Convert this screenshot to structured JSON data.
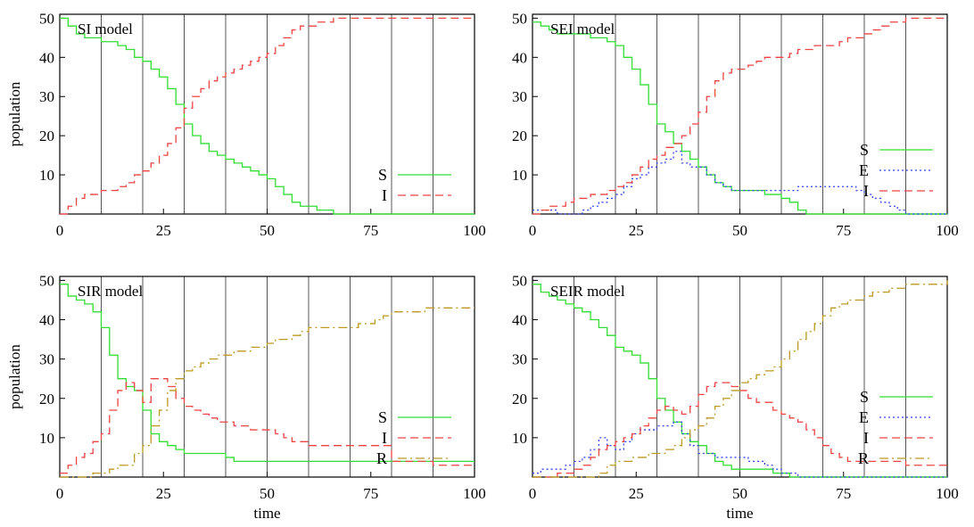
{
  "colors": {
    "S": "#33dd33",
    "E": "#3344ee",
    "I": "#ee4444",
    "R": "#bb9922",
    "frame": "#000000",
    "vline": "#555555"
  },
  "chart_data": [
    {
      "type": "line",
      "title": "SI model",
      "xlabel": "",
      "ylabel": "population",
      "xlim": [
        0,
        100
      ],
      "ylim": [
        0,
        51
      ],
      "x_ticks": [
        "0",
        "25",
        "50",
        "75",
        "100"
      ],
      "y_ticks": [
        "10",
        "20",
        "30",
        "40",
        "50"
      ],
      "vertical_lines": [
        10,
        20,
        30,
        40,
        50,
        60,
        70,
        80,
        90
      ],
      "legend_position": "bottom-right",
      "series": [
        {
          "name": "S",
          "key": "S",
          "style": "solid",
          "x": [
            0,
            2,
            4,
            6,
            8,
            10,
            12,
            14,
            16,
            18,
            20,
            22,
            24,
            26,
            28,
            30,
            32,
            34,
            36,
            38,
            40,
            42,
            44,
            46,
            48,
            50,
            52,
            54,
            56,
            58,
            60,
            62,
            64,
            66,
            68,
            70,
            80,
            90,
            100
          ],
          "y": [
            50,
            48,
            46,
            45,
            45,
            44,
            44,
            43,
            42,
            40,
            39,
            37,
            35,
            32,
            28,
            23,
            20,
            18,
            16,
            15,
            14,
            13,
            12,
            11,
            10,
            9,
            7,
            5,
            3,
            2,
            2,
            1,
            1,
            0,
            0,
            0,
            0,
            0,
            0
          ]
        },
        {
          "name": "I",
          "key": "I",
          "style": "dashed",
          "x": [
            0,
            2,
            4,
            6,
            8,
            10,
            12,
            14,
            16,
            18,
            20,
            22,
            24,
            26,
            28,
            30,
            32,
            34,
            36,
            38,
            40,
            42,
            44,
            46,
            48,
            50,
            52,
            54,
            56,
            58,
            60,
            62,
            64,
            66,
            68,
            70,
            80,
            90,
            100
          ],
          "y": [
            0,
            2,
            4,
            5,
            5,
            6,
            6,
            7,
            8,
            10,
            11,
            13,
            15,
            18,
            22,
            27,
            30,
            32,
            34,
            35,
            36,
            37,
            38,
            39,
            40,
            41,
            43,
            45,
            47,
            48,
            48,
            49,
            49,
            50,
            50,
            50,
            50,
            50,
            50
          ]
        }
      ]
    },
    {
      "type": "line",
      "title": "SEI model",
      "xlabel": "",
      "ylabel": "",
      "xlim": [
        0,
        100
      ],
      "ylim": [
        0,
        51
      ],
      "x_ticks": [
        "0",
        "25",
        "50",
        "75",
        "100"
      ],
      "y_ticks": [
        "10",
        "20",
        "30",
        "40",
        "50"
      ],
      "vertical_lines": [
        10,
        20,
        30,
        40,
        50,
        60,
        70,
        80,
        90
      ],
      "legend_position": "right",
      "series": [
        {
          "name": "S",
          "key": "S",
          "style": "solid",
          "x": [
            0,
            2,
            4,
            6,
            8,
            10,
            12,
            14,
            16,
            18,
            20,
            22,
            24,
            26,
            28,
            30,
            32,
            34,
            36,
            38,
            40,
            42,
            44,
            46,
            48,
            50,
            52,
            54,
            56,
            58,
            60,
            62,
            64,
            66,
            68,
            70,
            80,
            90,
            100
          ],
          "y": [
            49,
            48,
            47,
            46,
            46,
            46,
            46,
            45,
            45,
            44,
            43,
            40,
            37,
            33,
            28,
            23,
            21,
            18,
            16,
            14,
            12,
            10,
            8,
            7,
            6,
            6,
            6,
            6,
            5,
            5,
            4,
            3,
            1,
            0,
            0,
            0,
            0,
            0,
            0
          ]
        },
        {
          "name": "E",
          "key": "E",
          "style": "dotted",
          "x": [
            0,
            2,
            4,
            6,
            8,
            10,
            12,
            14,
            16,
            18,
            20,
            22,
            24,
            26,
            28,
            30,
            32,
            34,
            36,
            38,
            40,
            42,
            44,
            46,
            48,
            50,
            52,
            54,
            56,
            58,
            60,
            62,
            64,
            66,
            68,
            70,
            72,
            74,
            76,
            78,
            80,
            82,
            84,
            86,
            88,
            90,
            100
          ],
          "y": [
            1,
            1,
            1,
            0,
            0,
            0,
            1,
            2,
            3,
            4,
            5,
            7,
            9,
            10,
            12,
            13,
            14,
            16,
            13,
            12,
            12,
            10,
            8,
            7,
            6,
            6,
            6,
            6,
            6,
            6,
            6,
            6,
            7,
            7,
            7,
            7,
            7,
            7,
            7,
            6,
            5,
            4,
            3,
            2,
            1,
            0,
            0
          ]
        },
        {
          "name": "I",
          "key": "I",
          "style": "dashed",
          "x": [
            0,
            2,
            4,
            6,
            8,
            10,
            12,
            14,
            16,
            18,
            20,
            22,
            24,
            26,
            28,
            30,
            32,
            34,
            36,
            38,
            40,
            42,
            44,
            46,
            48,
            50,
            52,
            54,
            56,
            58,
            60,
            62,
            64,
            66,
            68,
            70,
            72,
            74,
            76,
            78,
            80,
            82,
            84,
            86,
            88,
            90,
            100
          ],
          "y": [
            0,
            1,
            2,
            2,
            3,
            4,
            4,
            5,
            5,
            6,
            7,
            8,
            10,
            12,
            14,
            15,
            17,
            18,
            20,
            23,
            26,
            30,
            34,
            36,
            37,
            37,
            38,
            39,
            40,
            40,
            40,
            41,
            42,
            42,
            43,
            43,
            43,
            44,
            45,
            45,
            46,
            47,
            48,
            49,
            49,
            50,
            50
          ]
        }
      ]
    },
    {
      "type": "line",
      "title": "SIR model",
      "xlabel": "time",
      "ylabel": "population",
      "xlim": [
        0,
        100
      ],
      "ylim": [
        0,
        51
      ],
      "x_ticks": [
        "0",
        "25",
        "50",
        "75",
        "100"
      ],
      "y_ticks": [
        "10",
        "20",
        "30",
        "40",
        "50"
      ],
      "vertical_lines": [
        10,
        20,
        30,
        40,
        50,
        60,
        70,
        80,
        90
      ],
      "legend_position": "bottom-right",
      "series": [
        {
          "name": "S",
          "key": "S",
          "style": "solid",
          "x": [
            0,
            2,
            4,
            6,
            8,
            10,
            12,
            14,
            16,
            18,
            20,
            22,
            24,
            26,
            28,
            30,
            32,
            34,
            36,
            38,
            40,
            42,
            44,
            46,
            48,
            50,
            60,
            70,
            80,
            90,
            100
          ],
          "y": [
            49,
            46,
            45,
            44,
            42,
            38,
            31,
            25,
            23,
            22,
            17,
            11,
            9,
            8,
            7,
            6,
            6,
            6,
            6,
            6,
            5,
            4,
            4,
            4,
            4,
            4,
            4,
            4,
            4,
            4,
            4
          ]
        },
        {
          "name": "I",
          "key": "I",
          "style": "dashed",
          "x": [
            0,
            2,
            4,
            6,
            8,
            10,
            12,
            14,
            16,
            18,
            20,
            22,
            24,
            26,
            28,
            30,
            32,
            34,
            36,
            38,
            40,
            42,
            44,
            46,
            48,
            50,
            52,
            54,
            56,
            58,
            60,
            70,
            80,
            90,
            100
          ],
          "y": [
            1,
            3,
            5,
            6,
            9,
            11,
            17,
            22,
            24,
            22,
            19,
            25,
            25,
            23,
            20,
            18,
            17,
            16,
            15,
            14,
            14,
            13,
            13,
            12,
            12,
            12,
            11,
            10,
            9,
            9,
            8,
            8,
            4,
            3,
            3
          ]
        },
        {
          "name": "R",
          "key": "R",
          "style": "dashdot",
          "x": [
            0,
            2,
            4,
            6,
            8,
            10,
            12,
            14,
            16,
            18,
            20,
            22,
            24,
            26,
            28,
            30,
            32,
            34,
            36,
            38,
            40,
            42,
            44,
            46,
            48,
            50,
            52,
            54,
            56,
            58,
            60,
            62,
            64,
            66,
            68,
            70,
            72,
            74,
            76,
            78,
            80,
            82,
            84,
            86,
            88,
            90,
            100
          ],
          "y": [
            0,
            0,
            0,
            0,
            1,
            1,
            2,
            3,
            3,
            6,
            8,
            13,
            17,
            22,
            25,
            27,
            28,
            29,
            30,
            31,
            31,
            32,
            32,
            33,
            33,
            34,
            35,
            35,
            36,
            37,
            38,
            38,
            38,
            38,
            38,
            38,
            39,
            39,
            40,
            41,
            42,
            42,
            42,
            42,
            43,
            43,
            43
          ]
        }
      ]
    },
    {
      "type": "line",
      "title": "SEIR model",
      "xlabel": "time",
      "ylabel": "",
      "xlim": [
        0,
        100
      ],
      "ylim": [
        0,
        51
      ],
      "x_ticks": [
        "0",
        "25",
        "50",
        "75",
        "100"
      ],
      "y_ticks": [
        "10",
        "20",
        "30",
        "40",
        "50"
      ],
      "vertical_lines": [
        10,
        20,
        30,
        40,
        50,
        60,
        70,
        80,
        90
      ],
      "legend_position": "bottom-right",
      "series": [
        {
          "name": "S",
          "key": "S",
          "style": "solid",
          "x": [
            0,
            2,
            4,
            6,
            8,
            10,
            12,
            14,
            16,
            18,
            20,
            22,
            24,
            26,
            28,
            30,
            32,
            34,
            36,
            38,
            40,
            42,
            44,
            46,
            48,
            50,
            52,
            54,
            56,
            58,
            60,
            62,
            64,
            100
          ],
          "y": [
            49,
            47,
            46,
            45,
            44,
            43,
            42,
            40,
            38,
            36,
            33,
            32,
            31,
            29,
            25,
            20,
            17,
            14,
            11,
            9,
            8,
            6,
            4,
            3,
            2,
            2,
            2,
            2,
            2,
            1,
            1,
            0,
            0,
            0
          ]
        },
        {
          "name": "E",
          "key": "E",
          "style": "dotted",
          "x": [
            0,
            2,
            4,
            6,
            8,
            10,
            12,
            14,
            16,
            18,
            20,
            22,
            24,
            26,
            28,
            30,
            32,
            34,
            36,
            38,
            40,
            42,
            44,
            46,
            48,
            50,
            52,
            54,
            56,
            58,
            60,
            62,
            64,
            100
          ],
          "y": [
            1,
            2,
            2,
            2,
            3,
            4,
            5,
            7,
            10,
            8,
            7,
            9,
            11,
            12,
            12,
            13,
            13,
            14,
            11,
            8,
            6,
            6,
            5,
            5,
            5,
            5,
            4,
            4,
            3,
            2,
            1,
            1,
            0,
            0
          ]
        },
        {
          "name": "I",
          "key": "I",
          "style": "dashed",
          "x": [
            0,
            2,
            4,
            6,
            8,
            10,
            12,
            14,
            16,
            18,
            20,
            22,
            24,
            26,
            28,
            30,
            32,
            34,
            36,
            38,
            40,
            42,
            44,
            46,
            48,
            50,
            52,
            54,
            56,
            58,
            60,
            62,
            64,
            66,
            68,
            70,
            72,
            74,
            76,
            78,
            80,
            90,
            100
          ],
          "y": [
            0,
            0,
            0,
            1,
            1,
            2,
            3,
            5,
            7,
            8,
            9,
            10,
            11,
            13,
            15,
            17,
            18,
            17,
            16,
            18,
            21,
            23,
            24,
            24,
            23,
            22,
            20,
            19,
            19,
            17,
            16,
            15,
            14,
            12,
            10,
            8,
            6,
            5,
            4,
            4,
            4,
            3,
            3
          ]
        },
        {
          "name": "R",
          "key": "R",
          "style": "dashdot",
          "x": [
            0,
            2,
            4,
            6,
            8,
            10,
            12,
            14,
            16,
            18,
            20,
            22,
            24,
            26,
            28,
            30,
            32,
            34,
            36,
            38,
            40,
            42,
            44,
            46,
            48,
            50,
            52,
            54,
            56,
            58,
            60,
            62,
            64,
            66,
            68,
            70,
            72,
            74,
            76,
            78,
            80,
            82,
            84,
            86,
            88,
            90,
            100
          ],
          "y": [
            0,
            0,
            0,
            0,
            0,
            0,
            0,
            0,
            1,
            3,
            4,
            4,
            5,
            5,
            6,
            6,
            7,
            8,
            10,
            12,
            13,
            15,
            18,
            20,
            22,
            24,
            25,
            26,
            27,
            28,
            30,
            32,
            35,
            37,
            39,
            41,
            43,
            44,
            45,
            45,
            46,
            47,
            47,
            48,
            48,
            49,
            50
          ]
        }
      ]
    }
  ]
}
